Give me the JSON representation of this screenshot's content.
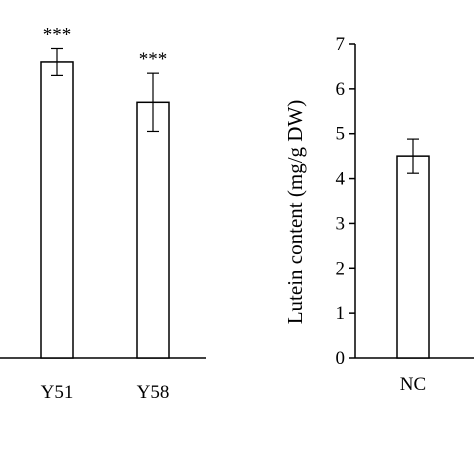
{
  "chart_data": [
    {
      "type": "bar",
      "categories": [
        "Y51",
        "Y58"
      ],
      "values": [
        6.6,
        5.7
      ],
      "errors": [
        0.3,
        0.65
      ],
      "annotations": [
        "***",
        "***"
      ],
      "ylim": [
        0,
        7
      ],
      "grid": false
    },
    {
      "type": "bar",
      "categories": [
        "NC"
      ],
      "values": [
        4.5
      ],
      "errors": [
        0.38
      ],
      "ylabel": "Lutein content (mg/g DW)",
      "ylim": [
        0,
        7
      ],
      "yticks": [
        "0",
        "1",
        "2",
        "3",
        "4",
        "5",
        "6",
        "7"
      ],
      "grid": false
    }
  ]
}
